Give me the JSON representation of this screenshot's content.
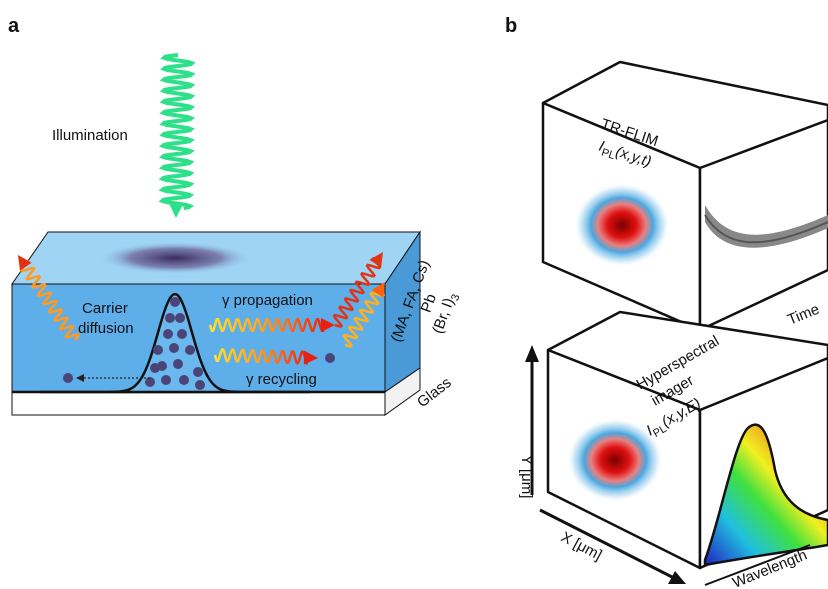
{
  "panel_a": {
    "label": "a",
    "illumination": "Illumination",
    "carrier_diffusion": [
      "Carrier",
      "diffusion"
    ],
    "propagation": "γ propagation",
    "recycling": "γ recycling",
    "composition": {
      "cations": "(MA, FA, Cs)",
      "metal": "Pb",
      "halides": "(Br, I)",
      "halides_subscript": "3"
    },
    "substrate": "Glass"
  },
  "panel_b": {
    "label": "b",
    "tr_flim": {
      "title": "TR-FLIM",
      "symbol": "I",
      "subscript": "PL",
      "arguments": "(x,y,t)"
    },
    "time_axis": "Time",
    "hyperspectral": {
      "title_lines": [
        "Hyperspectral",
        "imager"
      ],
      "symbol": "I",
      "subscript": "PL",
      "arguments": "(x,y,E)"
    },
    "y_axis": "Y [μm]",
    "x_axis": "X [μm]",
    "wavelength_axis": "Wavelength"
  }
}
